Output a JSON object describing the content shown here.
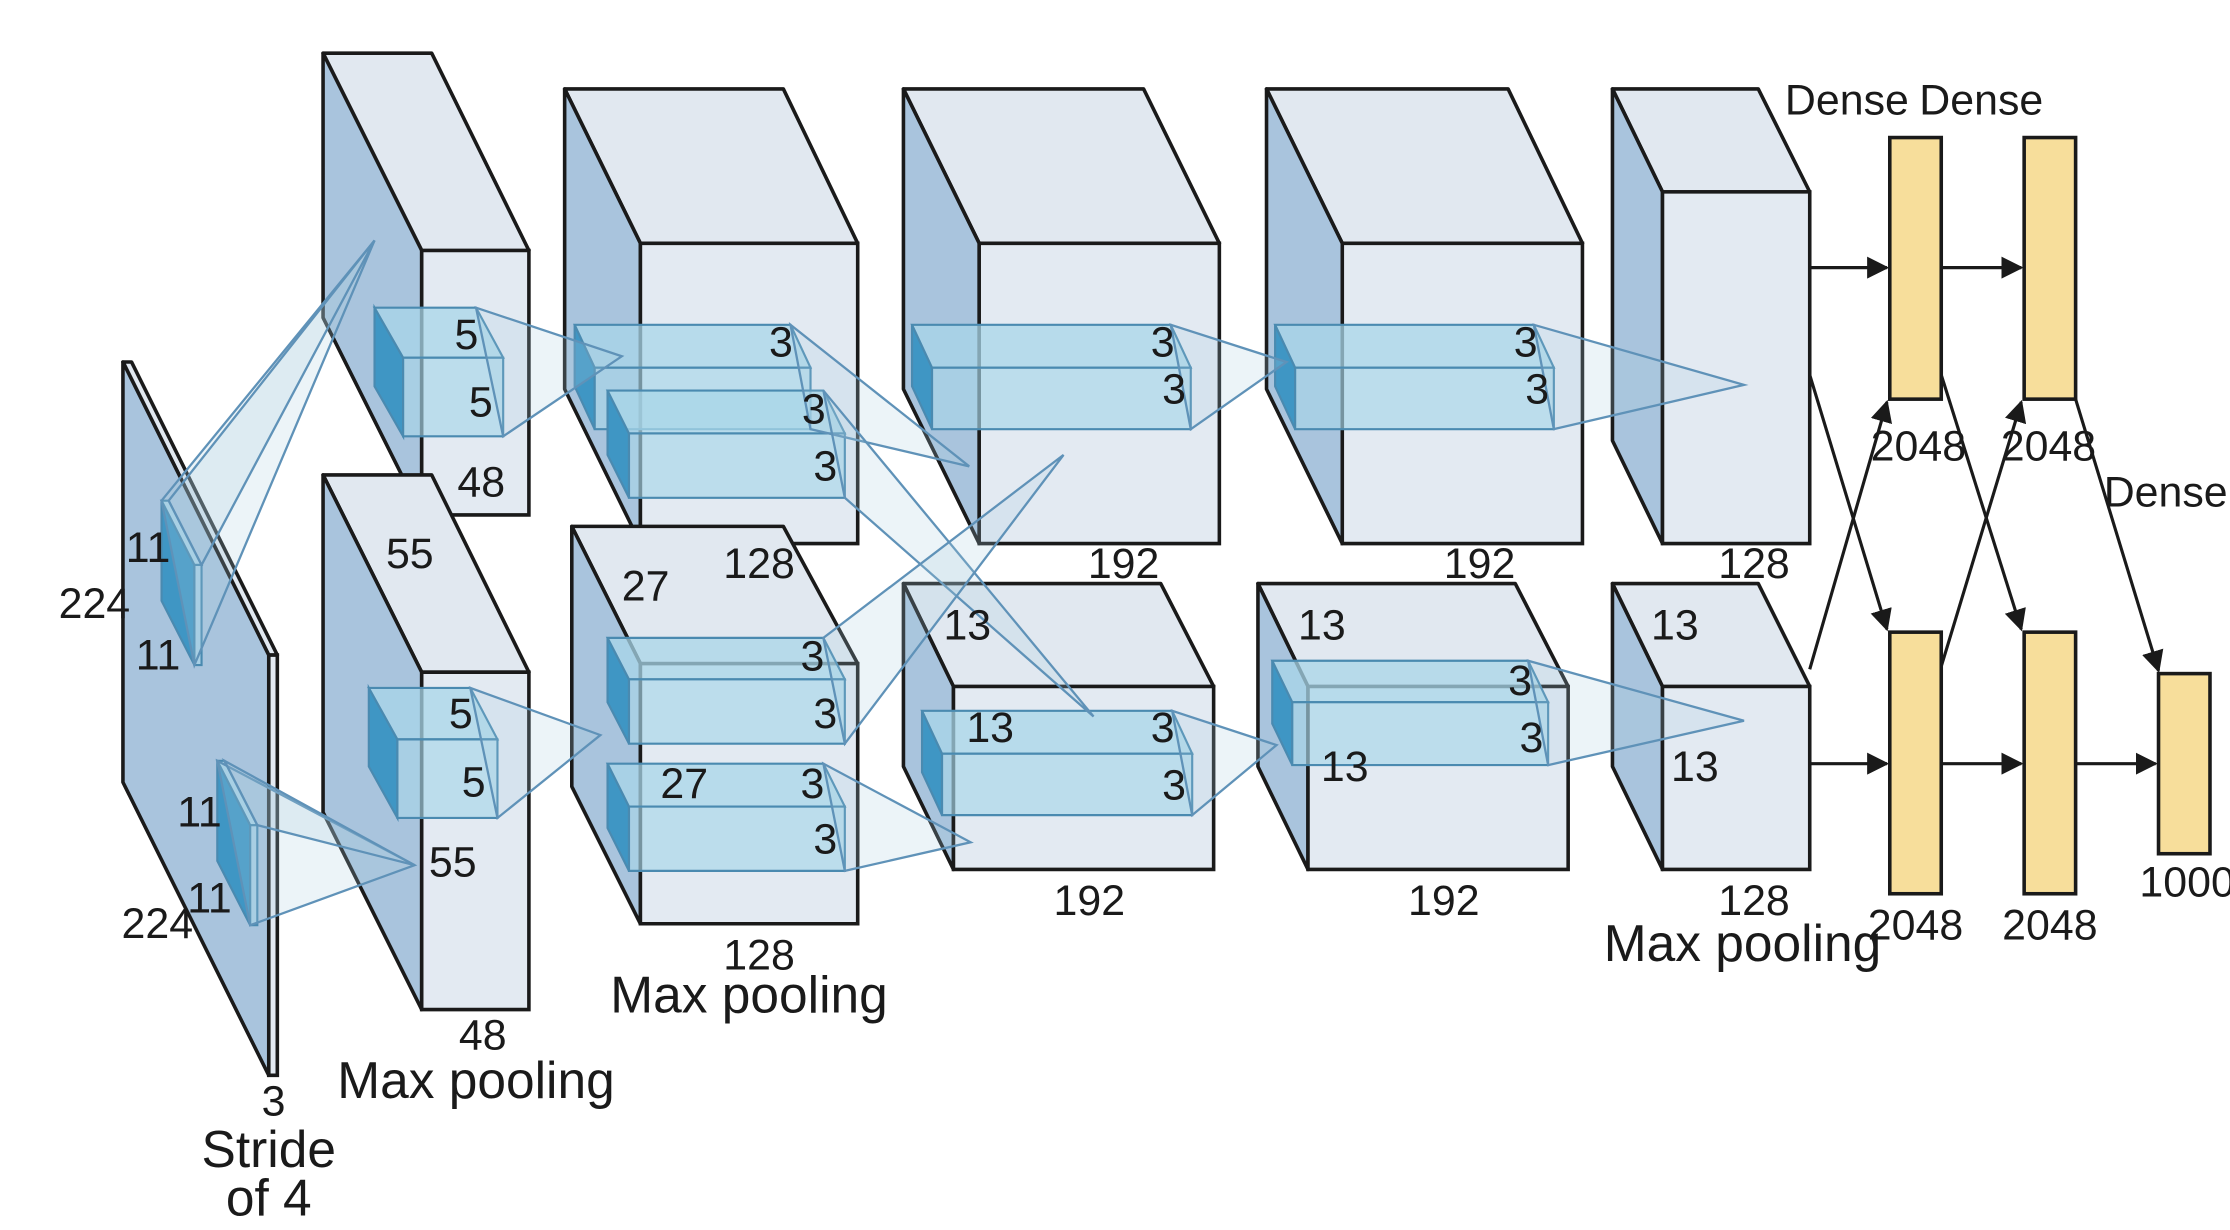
{
  "input": {
    "height": "224",
    "width": "224",
    "channels": "3",
    "kernel_h": "11",
    "kernel_w": "11",
    "kernel2_h": "11",
    "kernel2_w": "11",
    "stride_line1": "Stride",
    "stride_line2": "of 4"
  },
  "conv1": {
    "kernel_a": "5",
    "kernel_b": "5",
    "depth_top": "48",
    "height": "55",
    "kernel2_a": "5",
    "kernel2_b": "5",
    "width": "55",
    "depth_bottom": "48",
    "pool_label": "Max pooling"
  },
  "conv2": {
    "k1": "3",
    "k2": "3",
    "k3": "3",
    "depth_top": "128",
    "height": "27",
    "k4": "3",
    "k5": "3",
    "width": "27",
    "k6": "3",
    "k7": "3",
    "depth_bottom": "128",
    "pool_label": "Max pooling"
  },
  "conv3": {
    "k1": "3",
    "k2": "3",
    "depth_top": "192",
    "height": "13",
    "width": "13",
    "k3": "3",
    "k4": "3",
    "depth_bottom": "192"
  },
  "conv4": {
    "k1": "3",
    "k2": "3",
    "depth_top": "192",
    "height": "13",
    "k3": "3",
    "k4": "3",
    "width": "13",
    "depth_bottom": "192"
  },
  "conv5": {
    "depth_top": "128",
    "height": "13",
    "width": "13",
    "depth_bottom": "128",
    "pool_label": "Max pooling"
  },
  "dense": {
    "label1": "Dense",
    "label2": "Dense",
    "label3": "Dense",
    "fc1_top": "2048",
    "fc2_top": "2048",
    "fc1_bottom": "2048",
    "fc2_bottom": "2048",
    "output": "1000"
  },
  "colors": {
    "block_side": "#a9c4dd",
    "block_face": "#e3eaf2",
    "kernel": "#3f96c4",
    "dense": "#f7de9b"
  }
}
